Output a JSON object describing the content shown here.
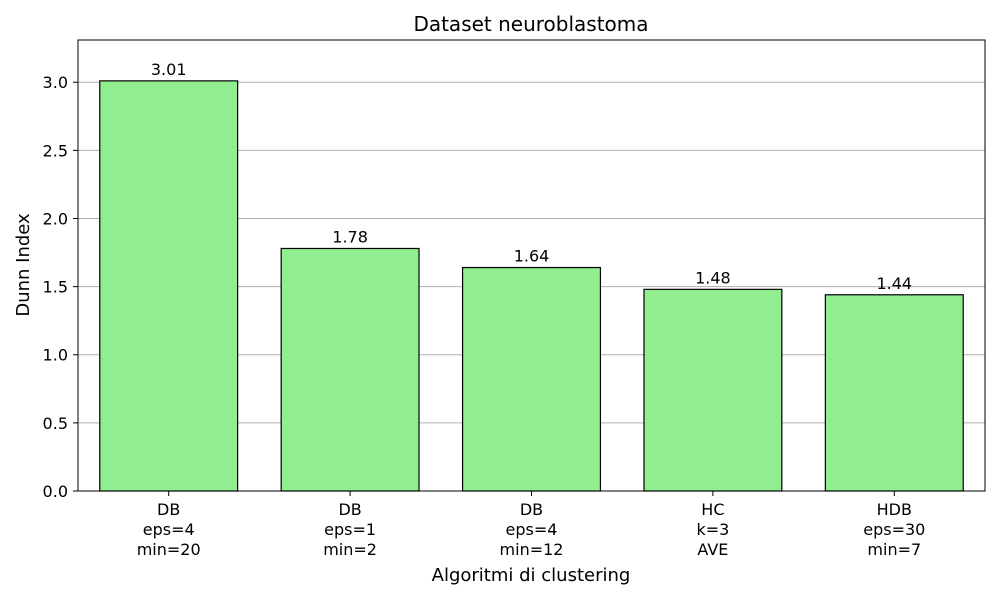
{
  "chart_data": {
    "type": "bar",
    "title": "Dataset neuroblastoma",
    "xlabel": "Algoritmi di clustering",
    "ylabel": "Dunn Index",
    "categories": [
      [
        "DB",
        "eps=4",
        "min=20"
      ],
      [
        "DB",
        "eps=1",
        "min=2"
      ],
      [
        "DB",
        "eps=4",
        "min=12"
      ],
      [
        "HC",
        "k=3",
        "AVE"
      ],
      [
        "HDB",
        "eps=30",
        "min=7"
      ]
    ],
    "values": [
      3.01,
      1.78,
      1.64,
      1.48,
      1.44
    ],
    "data_labels": [
      "3.01",
      "1.78",
      "1.64",
      "1.48",
      "1.44"
    ],
    "ylim": [
      0,
      3.31
    ],
    "yticks": [
      0.0,
      0.5,
      1.0,
      1.5,
      2.0,
      2.5,
      3.0
    ],
    "ytick_labels": [
      "0.0",
      "0.5",
      "1.0",
      "1.5",
      "2.0",
      "2.5",
      "3.0"
    ],
    "grid": "y",
    "bar_color": "#90ee90",
    "edge_color": "#000000",
    "grid_color": "#b0b0b0"
  }
}
